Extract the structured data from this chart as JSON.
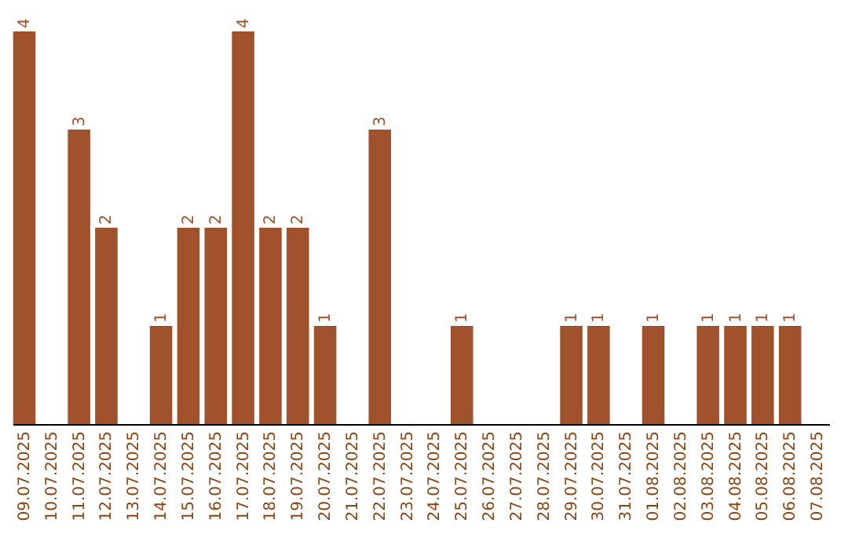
{
  "chart_data": {
    "type": "bar",
    "categories": [
      "09.07.2025",
      "10.07.2025",
      "11.07.2025",
      "12.07.2025",
      "13.07.2025",
      "14.07.2025",
      "15.07.2025",
      "16.07.2025",
      "17.07.2025",
      "18.07.2025",
      "19.07.2025",
      "20.07.2025",
      "21.07.2025",
      "22.07.2025",
      "23.07.2025",
      "24.07.2025",
      "25.07.2025",
      "26.07.2025",
      "27.07.2025",
      "28.07.2025",
      "29.07.2025",
      "30.07.2025",
      "31.07.2025",
      "01.08.2025",
      "02.08.2025",
      "03.08.2025",
      "04.08.2025",
      "05.08.2025",
      "06.08.2025",
      "07.08.2025"
    ],
    "values": [
      4,
      0,
      3,
      2,
      0,
      1,
      2,
      2,
      4,
      2,
      2,
      1,
      0,
      3,
      0,
      0,
      1,
      0,
      0,
      0,
      1,
      1,
      0,
      1,
      0,
      1,
      1,
      1,
      1,
      0
    ],
    "value_labels": [
      "4",
      null,
      "3",
      "2",
      null,
      "1",
      "2",
      "2",
      "4",
      "2",
      "2",
      "1",
      null,
      "3",
      null,
      null,
      "1",
      null,
      null,
      null,
      "1",
      "1",
      null,
      "1",
      null,
      "1",
      "1",
      "1",
      "1",
      null
    ],
    "color": "#a0522d",
    "ylim": [
      0,
      4
    ],
    "tick_labels": "x"
  }
}
